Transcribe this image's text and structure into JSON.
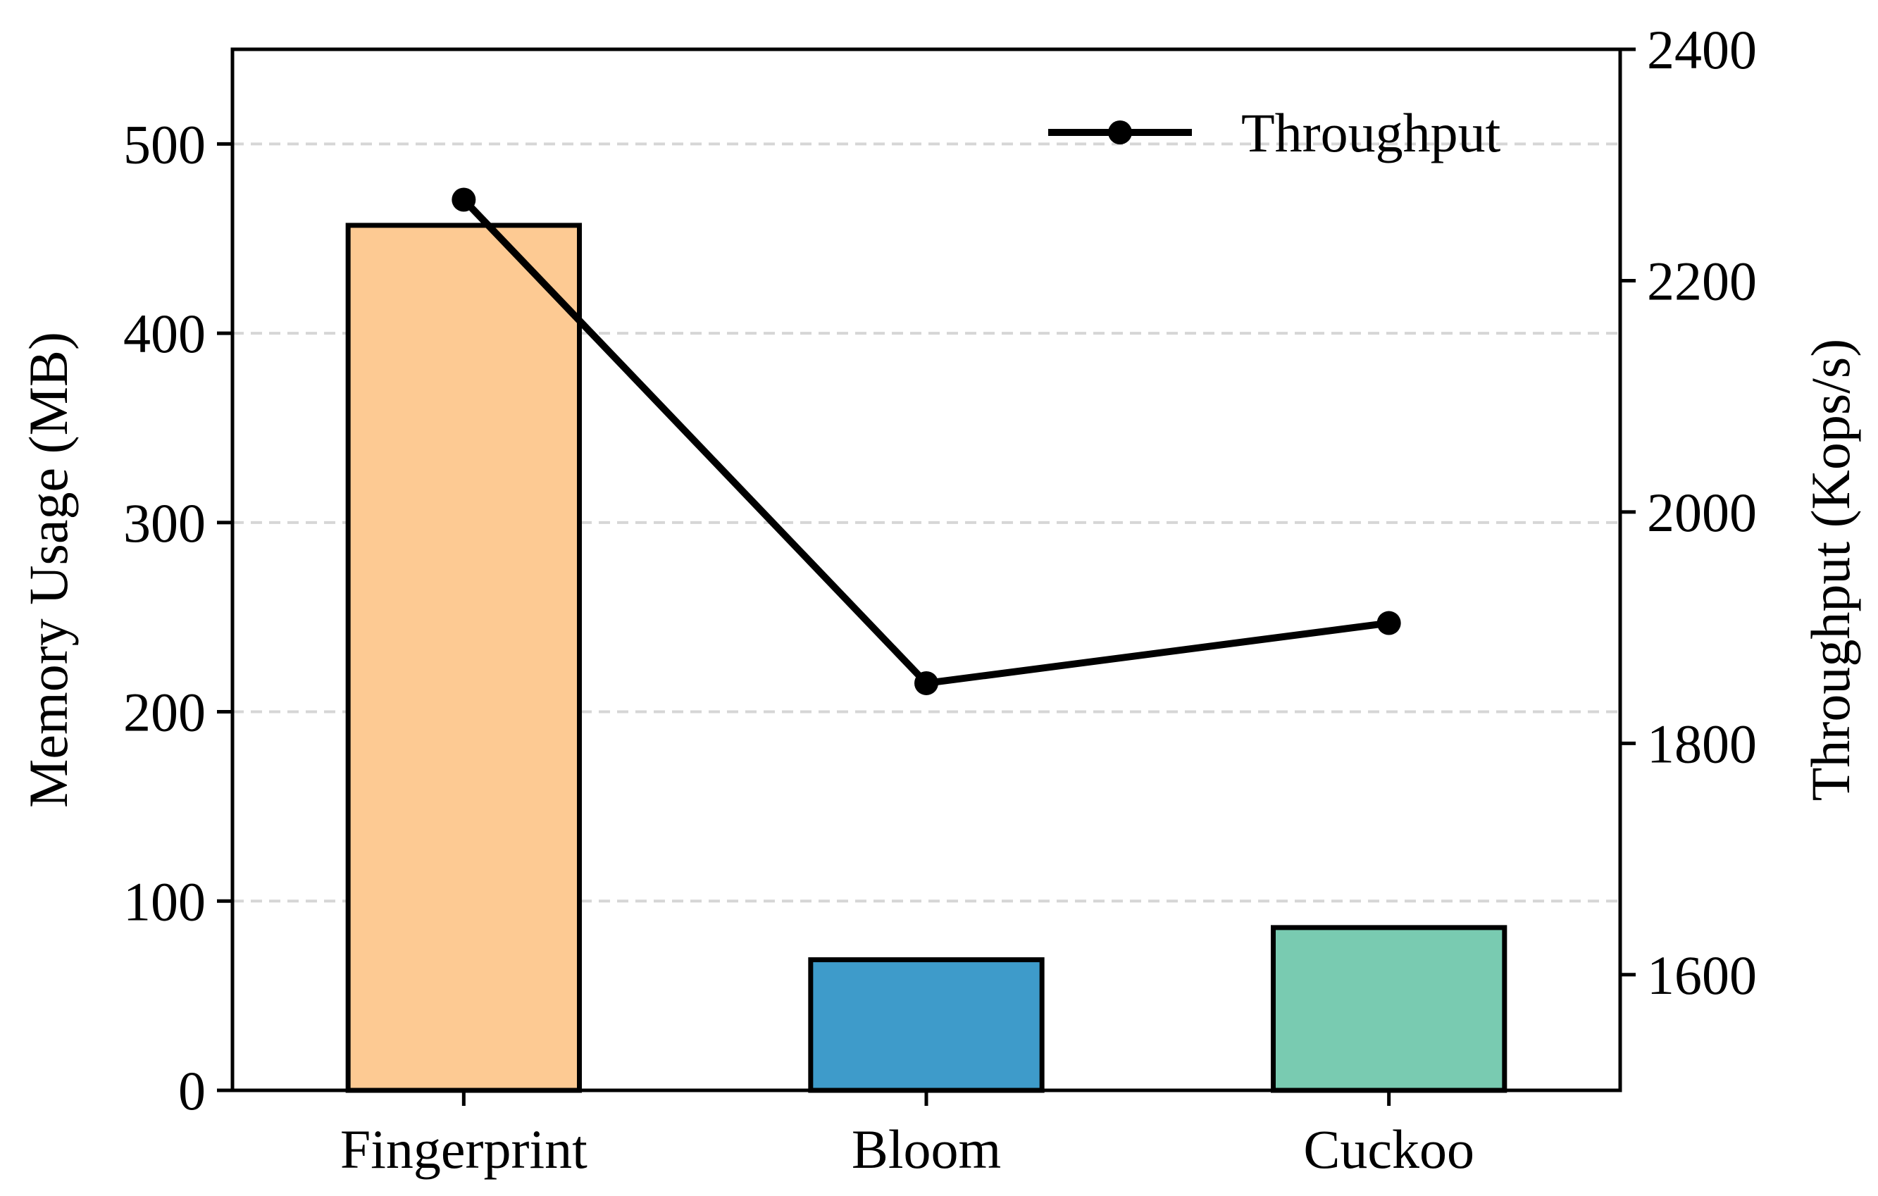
{
  "chart_data": {
    "type": "bar",
    "categories": [
      "Fingerprint",
      "Bloom",
      "Cuckoo"
    ],
    "series": [
      {
        "values": [
          457,
          69,
          86
        ],
        "axis": "left",
        "mark": "bar",
        "colors": [
          "#FDCA93",
          "#3E9BCA",
          "#79CBB1"
        ]
      },
      {
        "name": "Throughput",
        "values": [
          2270,
          1852,
          1904
        ],
        "axis": "right",
        "mark": "line",
        "color": "#000000"
      }
    ],
    "ylabel": "Memory Usage (MB)",
    "ylabel_right": "Throughput (Kops/s)",
    "ylim": [
      0,
      550
    ],
    "ylim_right": [
      1500,
      2400
    ],
    "yticks": [
      0,
      100,
      200,
      300,
      400,
      500
    ],
    "yticks_right": [
      1600,
      1800,
      2000,
      2200,
      2400
    ],
    "grid": "y-dashed",
    "legend_position": "top-right"
  }
}
